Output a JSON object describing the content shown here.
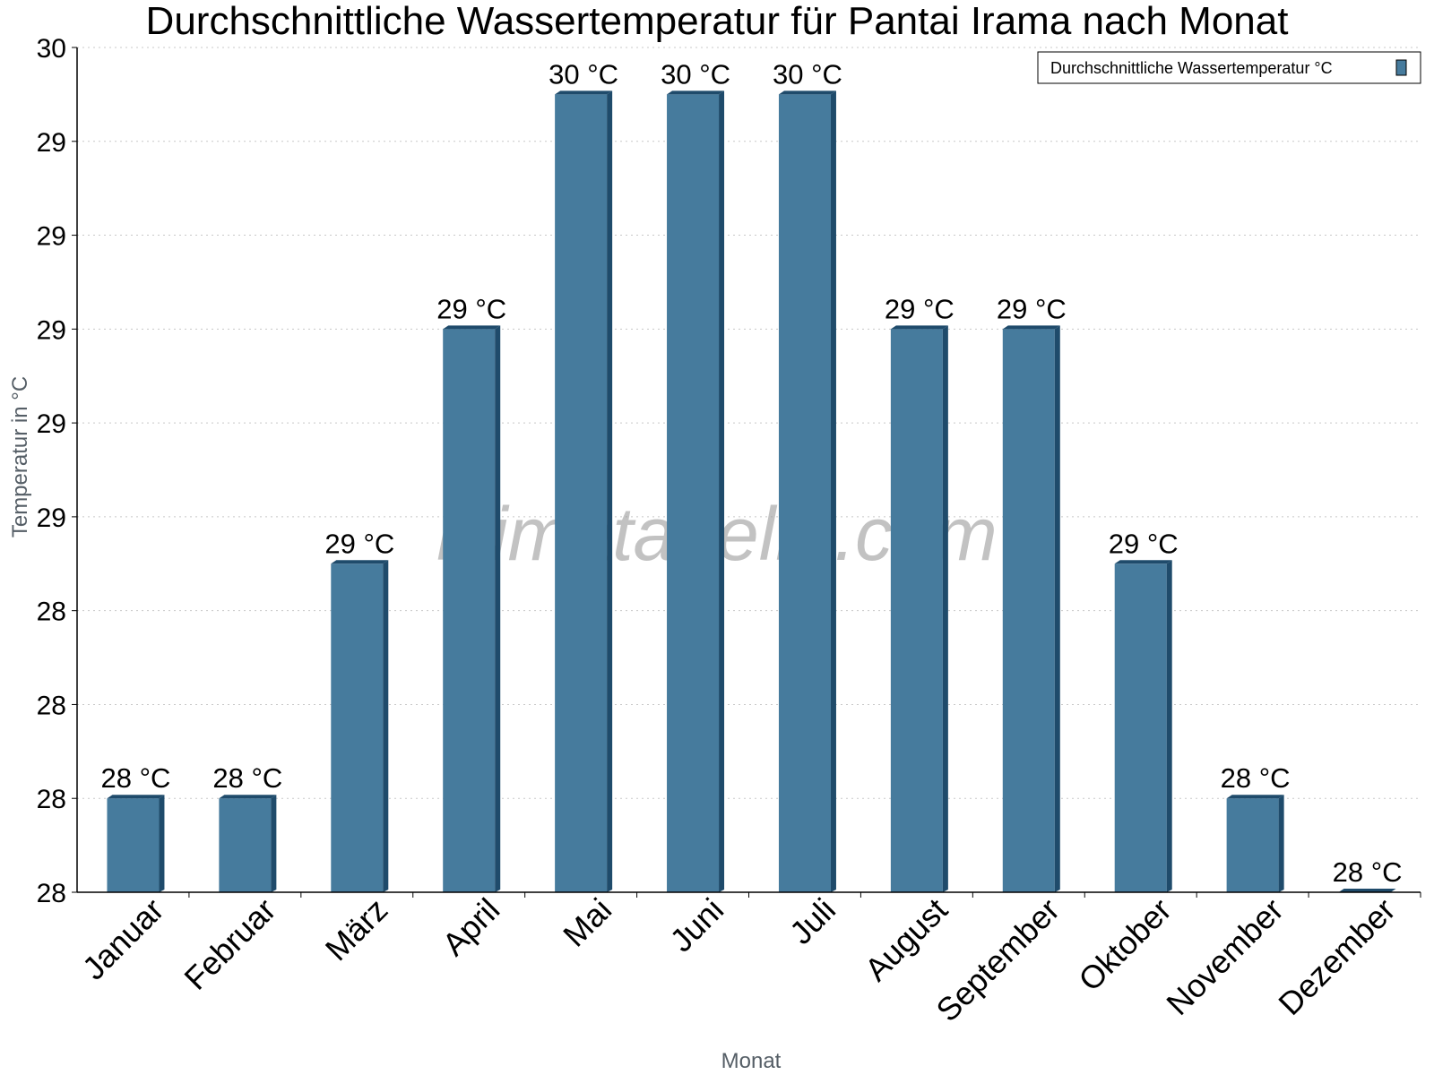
{
  "chart_data": {
    "type": "bar",
    "title": "Durchschnittliche Wassertemperatur für Pantai Irama nach Monat",
    "xlabel": "Monat",
    "ylabel": "Temperatur in °C",
    "categories": [
      "Januar",
      "Februar",
      "März",
      "April",
      "Mai",
      "Juni",
      "Juli",
      "August",
      "September",
      "Oktober",
      "November",
      "Dezember"
    ],
    "series": [
      {
        "name": "Durchschnittliche Wassertemperatur °C",
        "values": [
          28.2,
          28.2,
          28.7,
          29.2,
          29.7,
          29.7,
          29.7,
          29.2,
          29.2,
          28.7,
          28.2,
          28.0
        ],
        "labels": [
          "28 °C",
          "28 °C",
          "29 °C",
          "29 °C",
          "30 °C",
          "30 °C",
          "30 °C",
          "29 °C",
          "29 °C",
          "29 °C",
          "28 °C",
          "28 °C"
        ]
      }
    ],
    "ylim": [
      28.0,
      29.8
    ],
    "yticks": [
      28.0,
      28.2,
      28.4,
      28.6,
      28.8,
      29.0,
      29.2,
      29.4,
      29.6,
      29.8
    ],
    "ytick_labels": [
      "28",
      "28",
      "28",
      "28",
      "29",
      "29",
      "29",
      "29",
      "29",
      "30"
    ],
    "grid": true,
    "legend_position": "top-right",
    "colors": {
      "bar": "#467b9d",
      "bar_side": "#1f4b6b"
    },
    "watermark": "klimatabelle.com"
  }
}
